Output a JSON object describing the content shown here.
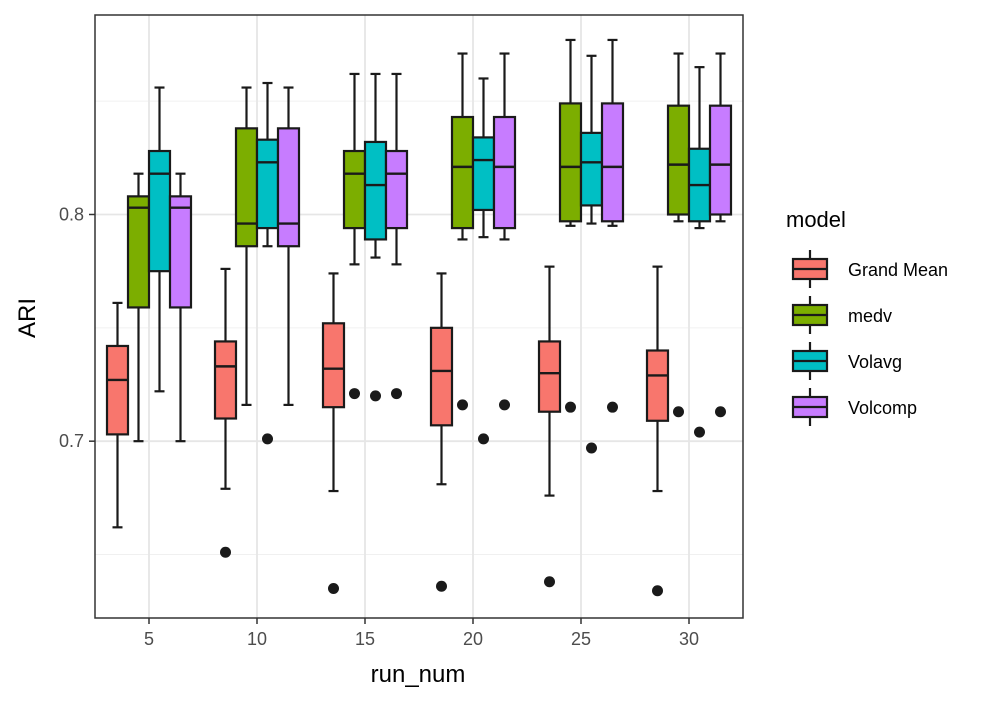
{
  "chart_data": {
    "type": "boxplot",
    "title": "",
    "xlabel": "run_num",
    "ylabel": "ARI",
    "categories": [
      "5",
      "10",
      "15",
      "20",
      "25",
      "30"
    ],
    "ylim": [
      0.622,
      0.888
    ],
    "yticks": [
      0.7,
      0.8
    ],
    "ytick_labels": [
      "0.7",
      "0.8"
    ],
    "grid": true,
    "legend": {
      "title": "model",
      "position": "right"
    },
    "series": [
      {
        "name": "Grand Mean",
        "color": "#F8766D",
        "boxes": [
          {
            "whisker_low": 0.662,
            "q1": 0.703,
            "median": 0.727,
            "q3": 0.742,
            "whisker_high": 0.761,
            "outliers": []
          },
          {
            "whisker_low": 0.679,
            "q1": 0.71,
            "median": 0.733,
            "q3": 0.744,
            "whisker_high": 0.776,
            "outliers": [
              0.651
            ]
          },
          {
            "whisker_low": 0.678,
            "q1": 0.715,
            "median": 0.732,
            "q3": 0.752,
            "whisker_high": 0.774,
            "outliers": [
              0.635
            ]
          },
          {
            "whisker_low": 0.681,
            "q1": 0.707,
            "median": 0.731,
            "q3": 0.75,
            "whisker_high": 0.774,
            "outliers": [
              0.636
            ]
          },
          {
            "whisker_low": 0.676,
            "q1": 0.713,
            "median": 0.73,
            "q3": 0.744,
            "whisker_high": 0.777,
            "outliers": [
              0.638
            ]
          },
          {
            "whisker_low": 0.678,
            "q1": 0.709,
            "median": 0.729,
            "q3": 0.74,
            "whisker_high": 0.777,
            "outliers": [
              0.634
            ]
          }
        ]
      },
      {
        "name": "medv",
        "color": "#7CAE00",
        "boxes": [
          {
            "whisker_low": 0.7,
            "q1": 0.759,
            "median": 0.803,
            "q3": 0.808,
            "whisker_high": 0.818,
            "outliers": []
          },
          {
            "whisker_low": 0.716,
            "q1": 0.786,
            "median": 0.796,
            "q3": 0.838,
            "whisker_high": 0.856,
            "outliers": []
          },
          {
            "whisker_low": 0.778,
            "q1": 0.794,
            "median": 0.818,
            "q3": 0.828,
            "whisker_high": 0.862,
            "outliers": [
              0.721
            ]
          },
          {
            "whisker_low": 0.789,
            "q1": 0.794,
            "median": 0.821,
            "q3": 0.843,
            "whisker_high": 0.871,
            "outliers": [
              0.716
            ]
          },
          {
            "whisker_low": 0.795,
            "q1": 0.797,
            "median": 0.821,
            "q3": 0.849,
            "whisker_high": 0.877,
            "outliers": [
              0.715
            ]
          },
          {
            "whisker_low": 0.797,
            "q1": 0.8,
            "median": 0.822,
            "q3": 0.848,
            "whisker_high": 0.871,
            "outliers": [
              0.713
            ]
          }
        ]
      },
      {
        "name": "Volavg",
        "color": "#00BFC4",
        "boxes": [
          {
            "whisker_low": 0.722,
            "q1": 0.775,
            "median": 0.818,
            "q3": 0.828,
            "whisker_high": 0.856,
            "outliers": []
          },
          {
            "whisker_low": 0.786,
            "q1": 0.794,
            "median": 0.823,
            "q3": 0.833,
            "whisker_high": 0.858,
            "outliers": [
              0.701
            ]
          },
          {
            "whisker_low": 0.781,
            "q1": 0.789,
            "median": 0.813,
            "q3": 0.832,
            "whisker_high": 0.862,
            "outliers": [
              0.72
            ]
          },
          {
            "whisker_low": 0.79,
            "q1": 0.802,
            "median": 0.824,
            "q3": 0.834,
            "whisker_high": 0.86,
            "outliers": [
              0.701
            ]
          },
          {
            "whisker_low": 0.796,
            "q1": 0.804,
            "median": 0.823,
            "q3": 0.836,
            "whisker_high": 0.87,
            "outliers": [
              0.697
            ]
          },
          {
            "whisker_low": 0.794,
            "q1": 0.797,
            "median": 0.813,
            "q3": 0.829,
            "whisker_high": 0.865,
            "outliers": [
              0.704
            ]
          }
        ]
      },
      {
        "name": "Volcomp",
        "color": "#C77CFF",
        "boxes": [
          {
            "whisker_low": 0.7,
            "q1": 0.759,
            "median": 0.803,
            "q3": 0.808,
            "whisker_high": 0.818,
            "outliers": []
          },
          {
            "whisker_low": 0.716,
            "q1": 0.786,
            "median": 0.796,
            "q3": 0.838,
            "whisker_high": 0.856,
            "outliers": []
          },
          {
            "whisker_low": 0.778,
            "q1": 0.794,
            "median": 0.818,
            "q3": 0.828,
            "whisker_high": 0.862,
            "outliers": [
              0.721
            ]
          },
          {
            "whisker_low": 0.789,
            "q1": 0.794,
            "median": 0.821,
            "q3": 0.843,
            "whisker_high": 0.871,
            "outliers": [
              0.716
            ]
          },
          {
            "whisker_low": 0.795,
            "q1": 0.797,
            "median": 0.821,
            "q3": 0.849,
            "whisker_high": 0.877,
            "outliers": [
              0.715
            ]
          },
          {
            "whisker_low": 0.797,
            "q1": 0.8,
            "median": 0.822,
            "q3": 0.848,
            "whisker_high": 0.871,
            "outliers": [
              0.713
            ]
          }
        ]
      }
    ]
  }
}
